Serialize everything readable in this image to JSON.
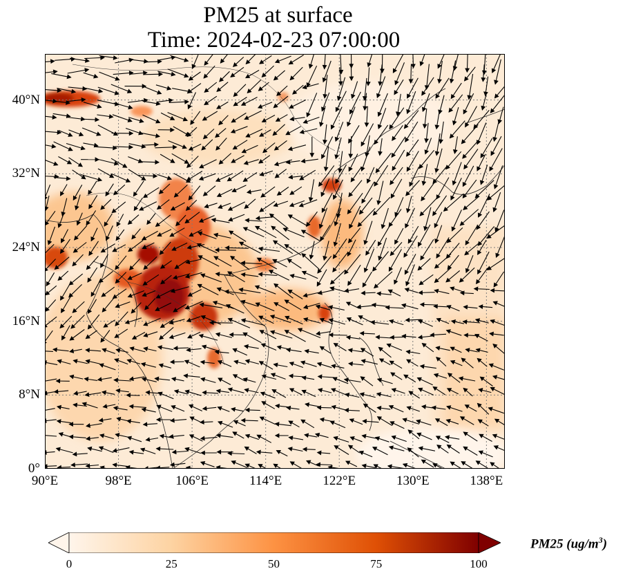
{
  "title": {
    "line1": "PM25 at surface",
    "line2": "Time: 2024-02-23 07:00:00"
  },
  "map": {
    "extent": {
      "lon_min": 90,
      "lon_max": 140,
      "lat_min": 0,
      "lat_max": 45
    },
    "x_ticks": [
      {
        "lon": 90,
        "label": "90°E"
      },
      {
        "lon": 98,
        "label": "98°E"
      },
      {
        "lon": 106,
        "label": "106°E"
      },
      {
        "lon": 114,
        "label": "114°E"
      },
      {
        "lon": 122,
        "label": "122°E"
      },
      {
        "lon": 130,
        "label": "130°E"
      },
      {
        "lon": 138,
        "label": "138°E"
      }
    ],
    "y_ticks": [
      {
        "lat": 0,
        "label": "0°"
      },
      {
        "lat": 8,
        "label": "8°N"
      },
      {
        "lat": 16,
        "label": "16°N"
      },
      {
        "lat": 24,
        "label": "24°N"
      },
      {
        "lat": 32,
        "label": "32°N"
      },
      {
        "lat": 40,
        "label": "40°N"
      }
    ],
    "gridlines": "dotted",
    "field": "PM25 concentration (filled), surface wind vectors (arrows)"
  },
  "colorbar": {
    "ticks": [
      "0",
      "25",
      "50",
      "75",
      "100"
    ],
    "unit_label_main": "PM25 (ug/m",
    "unit_label_sup": "3",
    "unit_label_close": ")",
    "colors": [
      "#fff5eb",
      "#fdd3a2",
      "#fd9243",
      "#df5005",
      "#7f0000"
    ],
    "extend": "both"
  }
}
